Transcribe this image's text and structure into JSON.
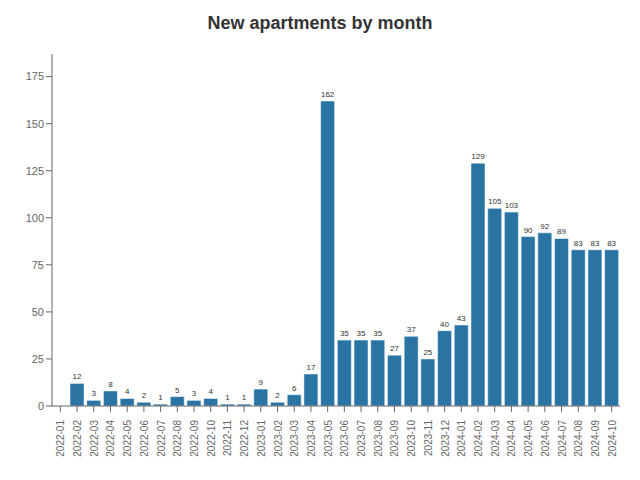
{
  "chart_data": {
    "type": "bar",
    "title": "New apartments by month",
    "categories": [
      "2022-01",
      "2022-02",
      "2022-03",
      "2022-04",
      "2022-05",
      "2022-06",
      "2022-07",
      "2022-08",
      "2022-09",
      "2022-10",
      "2022-11",
      "2022-12",
      "2023-01",
      "2023-02",
      "2023-03",
      "2023-04",
      "2023-05",
      "2023-06",
      "2023-07",
      "2023-08",
      "2023-09",
      "2023-10",
      "2023-11",
      "2023-12",
      "2024-01",
      "2024-02",
      "2024-03",
      "2024-04",
      "2024-05",
      "2024-06",
      "2024-07",
      "2024-08",
      "2024-09",
      "2024-10"
    ],
    "values": [
      0,
      12,
      3,
      8,
      4,
      2,
      1,
      5,
      3,
      4,
      1,
      1,
      9,
      2,
      6,
      17,
      162,
      35,
      35,
      35,
      27,
      37,
      25,
      40,
      43,
      129,
      105,
      103,
      90,
      92,
      89,
      83,
      83,
      83
    ],
    "value_labels": [
      null,
      "12",
      "3",
      "8",
      "4",
      "2",
      "1",
      "5",
      "3",
      "4",
      "1",
      "1",
      "9",
      "2",
      "6",
      "17",
      "162",
      "35",
      "35",
      "35",
      "27",
      "37",
      "25",
      "40",
      "43",
      "129",
      "105",
      "103",
      "90",
      "92",
      "89",
      "83",
      "83",
      "83"
    ],
    "data_labels": true,
    "color": "#2a74a4",
    "ylim": [
      0,
      187
    ],
    "yticks": [
      0,
      25,
      50,
      75,
      100,
      125,
      150,
      175
    ],
    "grid": false
  }
}
